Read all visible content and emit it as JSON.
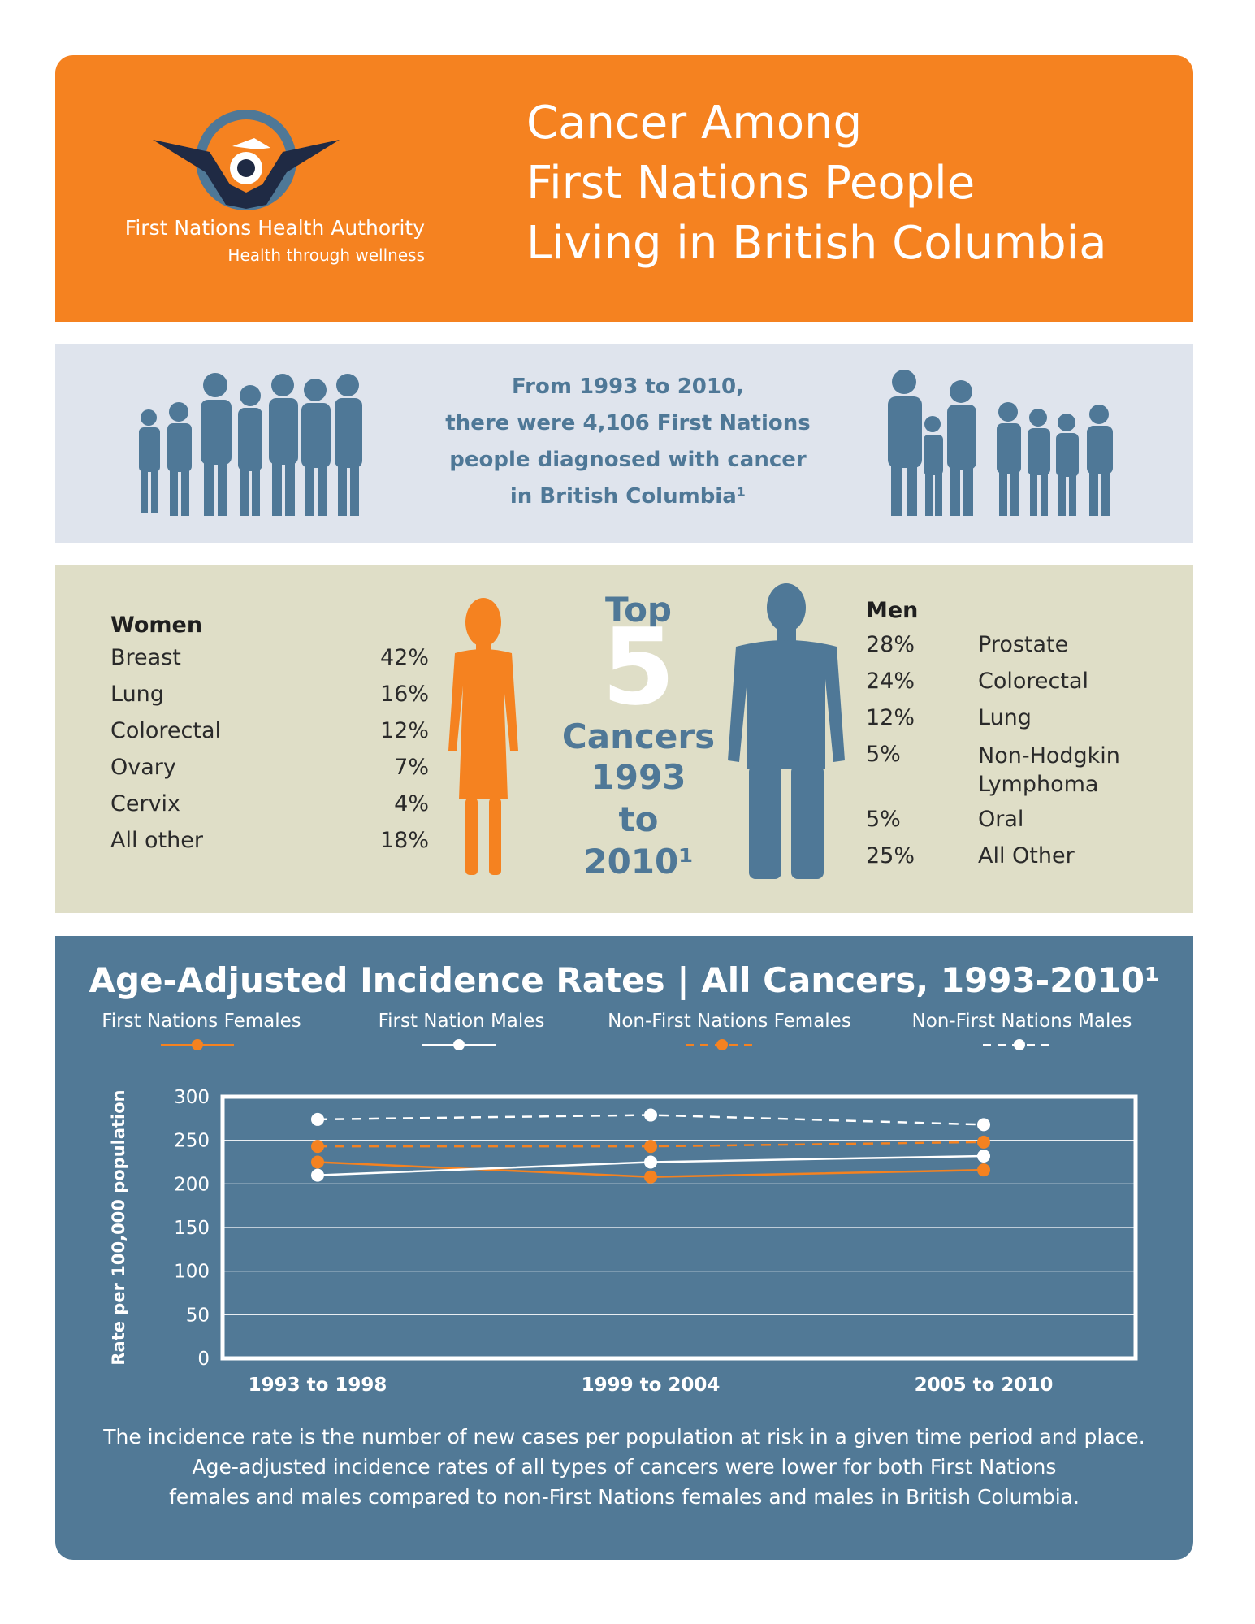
{
  "header": {
    "org_name": "First Nations Health Authority",
    "org_tagline": "Health through wellness",
    "title_lines": [
      "Cancer Among",
      "First Nations People",
      "Living in British Columbia"
    ],
    "logo_icon": "thunderbird-logo-icon"
  },
  "summary": {
    "lines": [
      "From 1993 to 2010,",
      "there were 4,106 First Nations",
      "people diagnosed with cancer",
      "in British Columbia¹"
    ]
  },
  "top_cancers": {
    "top_word": "Top",
    "number": "5",
    "caption_lines": [
      "Cancers",
      "1993",
      "to",
      "2010¹"
    ],
    "women": {
      "heading": "Women",
      "rows": [
        {
          "label": "Breast",
          "pct": "42%"
        },
        {
          "label": "Lung",
          "pct": "16%"
        },
        {
          "label": "Colorectal",
          "pct": "12%"
        },
        {
          "label": "Ovary",
          "pct": "7%"
        },
        {
          "label": "Cervix",
          "pct": "4%"
        },
        {
          "label": "All other",
          "pct": "18%"
        }
      ]
    },
    "men": {
      "heading": "Men",
      "rows": [
        {
          "pct": "28%",
          "label": "Prostate"
        },
        {
          "pct": "24%",
          "label": "Colorectal"
        },
        {
          "pct": "12%",
          "label": "Lung"
        },
        {
          "pct": "5%",
          "label": "Non-Hodgkin Lymphoma"
        },
        {
          "pct": "5%",
          "label": "Oral"
        },
        {
          "pct": "25%",
          "label": "All Other"
        }
      ]
    }
  },
  "chart_caption_lines": [
    "The incidence rate is the number of new cases per population at risk in a given time period and place.",
    "Age-adjusted incidence rates of all types of cancers were lower for both First Nations",
    "females and males compared to non-First Nations females and males in British Columbia."
  ],
  "colors": {
    "orange": "#f58220",
    "blue": "#517996",
    "white": "#ffffff"
  },
  "chart_data": {
    "type": "line",
    "title": "Age-Adjusted Incidence Rates  |  All Cancers, 1993-2010¹",
    "ylabel": "Rate per 100,000 population",
    "xlabel": "",
    "categories": [
      "1993 to 1998",
      "1999 to 2004",
      "2005 to 2010"
    ],
    "ylim": [
      0,
      300
    ],
    "yticks": [
      0,
      50,
      100,
      150,
      200,
      250,
      300
    ],
    "grid": true,
    "legend_position": "top",
    "series": [
      {
        "name": "First Nations Females",
        "values": [
          225,
          208,
          216
        ],
        "color": "#f58220",
        "dashed": false
      },
      {
        "name": "First Nation Males",
        "values": [
          210,
          225,
          232
        ],
        "color": "#ffffff",
        "dashed": false
      },
      {
        "name": "Non-First Nations Females",
        "values": [
          243,
          243,
          248
        ],
        "color": "#f58220",
        "dashed": true
      },
      {
        "name": "Non-First Nations Males",
        "values": [
          274,
          279,
          268
        ],
        "color": "#ffffff",
        "dashed": true
      }
    ]
  }
}
